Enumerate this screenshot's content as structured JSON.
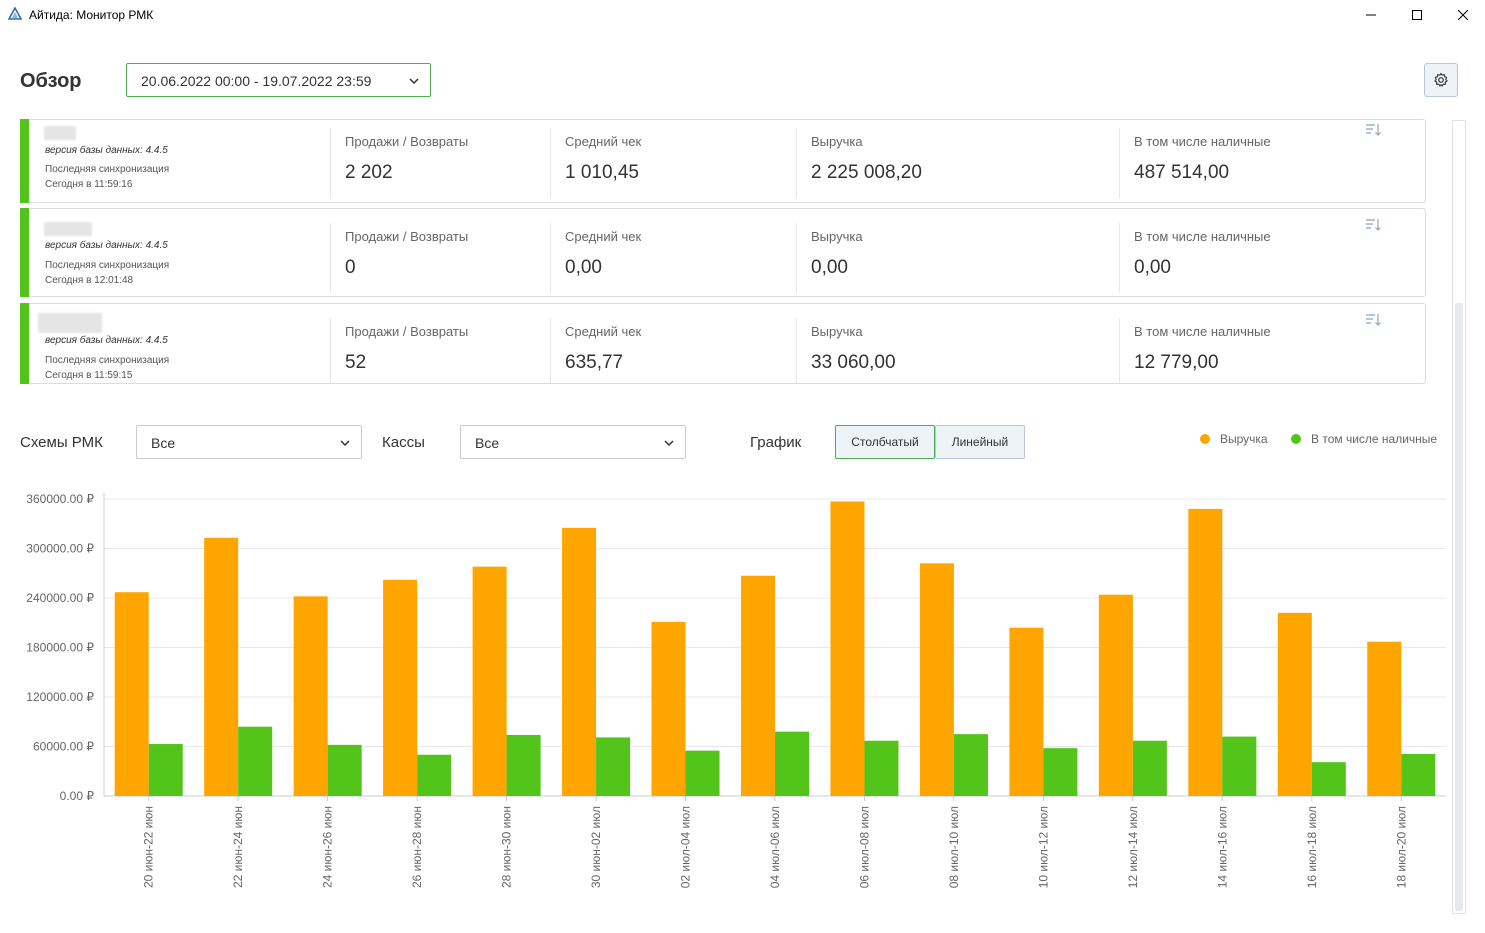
{
  "window": {
    "title": "Айтида: Монитор РМК",
    "icons": [
      "app-logo-icon",
      "minimize-icon",
      "maximize-icon",
      "close-icon"
    ]
  },
  "header": {
    "title": "Обзор",
    "date_range": "20.06.2022 00:00 - 19.07.2022 23:59"
  },
  "stores": [
    {
      "db_version": "версия базы данных: 4.4.5",
      "sync_label": "Последняя синхронизация",
      "sync_time": "Сегодня в 11:59:16",
      "metrics": [
        {
          "label": "Продажи / Возвраты",
          "value": "2 202"
        },
        {
          "label": "Средний чек",
          "value": "1 010,45"
        },
        {
          "label": "Выручка",
          "value": "2 225 008,20"
        },
        {
          "label": "В том числе наличные",
          "value": "487 514,00"
        }
      ]
    },
    {
      "db_version": "версия базы данных: 4.4.5",
      "sync_label": "Последняя синхронизация",
      "sync_time": "Сегодня в 12:01:48",
      "metrics": [
        {
          "label": "Продажи / Возвраты",
          "value": "0"
        },
        {
          "label": "Средний чек",
          "value": "0,00"
        },
        {
          "label": "Выручка",
          "value": "0,00"
        },
        {
          "label": "В том числе наличные",
          "value": "0,00"
        }
      ]
    },
    {
      "db_version": "версия базы данных: 4.4.5",
      "sync_label": "Последняя синхронизация",
      "sync_time": "Сегодня в 11:59:15",
      "metrics": [
        {
          "label": "Продажи / Возвраты",
          "value": "52"
        },
        {
          "label": "Средний чек",
          "value": "635,77"
        },
        {
          "label": "Выручка",
          "value": "33 060,00"
        },
        {
          "label": "В том числе наличные",
          "value": "12 779,00"
        }
      ]
    }
  ],
  "filters": {
    "schemes_label": "Схемы РМК",
    "schemes_value": "Все",
    "registers_label": "Кассы",
    "registers_value": "Все",
    "chart_label": "График",
    "chart_bar": "Столбчатый",
    "chart_line": "Линейный"
  },
  "colors": {
    "revenue": "#ffa500",
    "cash": "#52c41a",
    "accent": "#4caf50"
  },
  "chart_data": {
    "type": "bar",
    "categories": [
      "20 июн-22 июн",
      "22 июн-24 июн",
      "24 июн-26 июн",
      "26 июн-28 июн",
      "28 июн-30 июн",
      "30 июн-02 июл",
      "02 июл-04 июл",
      "04 июл-06 июл",
      "06 июл-08 июл",
      "08 июл-10 июл",
      "10 июл-12 июл",
      "12 июл-14 июл",
      "14 июл-16 июл",
      "16 июл-18 июл",
      "18 июл-20 июл"
    ],
    "series": [
      {
        "name": "Выручка",
        "color": "#ffa500",
        "values": [
          247000,
          313000,
          242000,
          262000,
          278000,
          325000,
          211000,
          267000,
          357000,
          282000,
          204000,
          244000,
          348000,
          222000,
          187000
        ]
      },
      {
        "name": "В том числе наличные",
        "color": "#52c41a",
        "values": [
          63000,
          84000,
          62000,
          50000,
          74000,
          71000,
          55000,
          78000,
          67000,
          75000,
          58000,
          67000,
          72000,
          41000,
          51000
        ]
      }
    ],
    "y_ticks": [
      "0.00 ₽",
      "60000.00 ₽",
      "120000.00 ₽",
      "180000.00 ₽",
      "240000.00 ₽",
      "300000.00 ₽",
      "360000.00 ₽"
    ],
    "ylim": [
      0,
      360000
    ],
    "grid": true,
    "legend": "top-right"
  }
}
